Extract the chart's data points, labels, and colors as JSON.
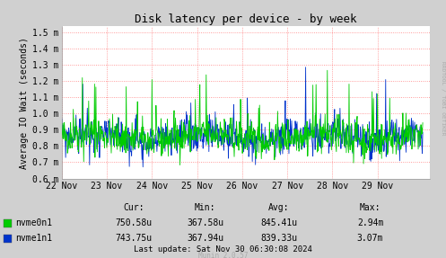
{
  "title": "Disk latency per device - by week",
  "ylabel": "Average IO Wait (seconds)",
  "yticks": [
    0.6,
    0.7,
    0.8,
    0.9,
    1.0,
    1.1,
    1.2,
    1.3,
    1.4,
    1.5
  ],
  "ytick_labels": [
    "0.6 m",
    "0.7 m",
    "0.8 m",
    "0.9 m",
    "1.0 m",
    "1.1 m",
    "1.2 m",
    "1.3 m",
    "1.4 m",
    "1.5 m"
  ],
  "ylim": [
    0.595,
    1.54
  ],
  "xtick_labels": [
    "22 Nov",
    "23 Nov",
    "24 Nov",
    "25 Nov",
    "26 Nov",
    "27 Nov",
    "28 Nov",
    "29 Nov"
  ],
  "bg_color": "#d0d0d0",
  "plot_bg_color": "#ffffff",
  "grid_color": "#ff8080",
  "series": [
    {
      "name": "nvme0n1",
      "color": "#00cc00"
    },
    {
      "name": "nvme1n1",
      "color": "#0033cc"
    }
  ],
  "legend_items": [
    {
      "label": "nvme0n1",
      "color": "#00cc00"
    },
    {
      "label": "nvme1n1",
      "color": "#0033cc"
    }
  ],
  "stats_header": [
    "Cur:",
    "Min:",
    "Avg:",
    "Max:"
  ],
  "stats": [
    [
      "750.58u",
      "367.58u",
      "845.41u",
      "2.94m"
    ],
    [
      "743.75u",
      "367.94u",
      "839.33u",
      "3.07m"
    ]
  ],
  "last_update": "Last update: Sat Nov 30 06:30:08 2024",
  "munin_version": "Munin 2.0.57",
  "rrdtool_label": "RRDTOOL / TOBI OETIKER",
  "title_fontsize": 9,
  "axis_fontsize": 7,
  "legend_fontsize": 7,
  "stats_fontsize": 7,
  "seed": 42,
  "n_points": 800
}
